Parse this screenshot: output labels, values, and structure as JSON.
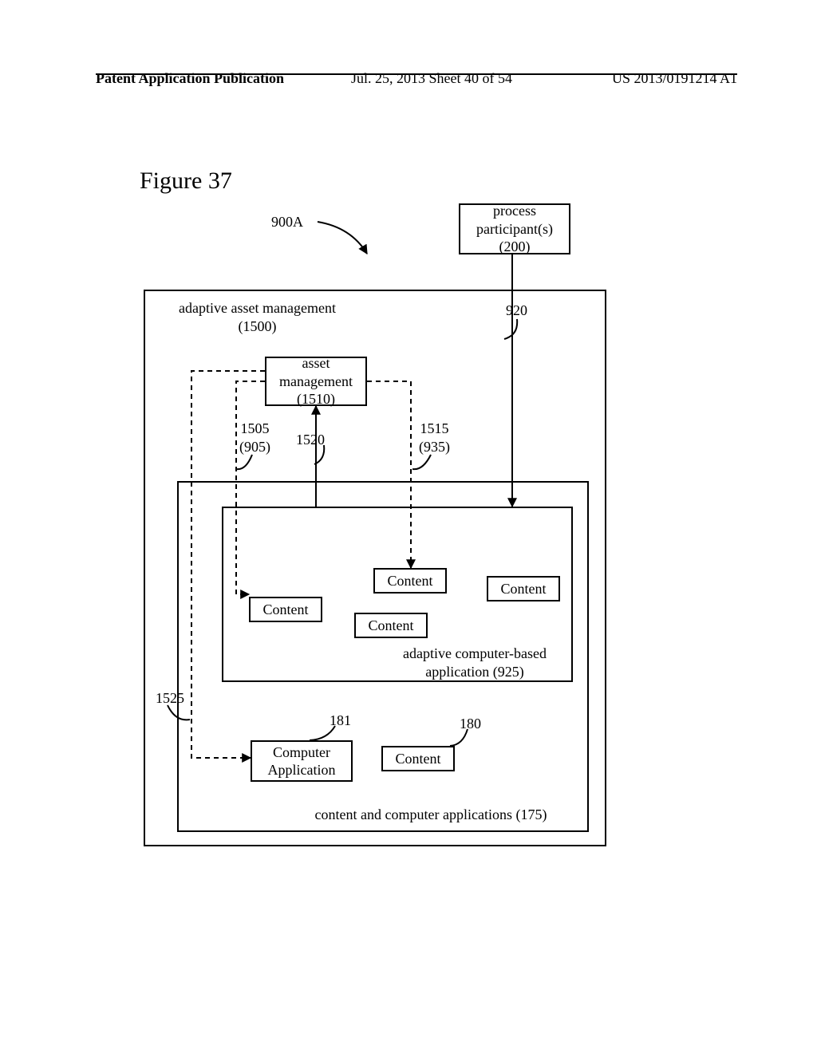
{
  "header": {
    "left": "Patent Application Publication",
    "mid": "Jul. 25, 2013  Sheet 40 of 54",
    "right": "US 2013/0191214 A1"
  },
  "figure_title": "Figure 37",
  "labels": {
    "ref_900A": "900A",
    "ref_920": "920",
    "ref_1505_905": "1505\n(905)",
    "ref_1520": "1520",
    "ref_1515_935": "1515\n(935)",
    "ref_1525": "1525",
    "ref_181": "181",
    "ref_180": "180",
    "adaptive_asset_mgmt": "adaptive asset management\n(1500)",
    "adaptive_app": "adaptive computer-based\napplication (925)",
    "content_apps": "content and computer applications (175)"
  },
  "boxes": {
    "process_participants": "process\nparticipant(s)\n(200)",
    "asset_management": "asset\nmanagement\n(1510)",
    "content": "Content",
    "computer_application": "Computer\nApplication"
  },
  "style": {
    "stroke": "#000000",
    "stroke_width": 2,
    "dash": "6,5",
    "arrow_size": 9
  }
}
